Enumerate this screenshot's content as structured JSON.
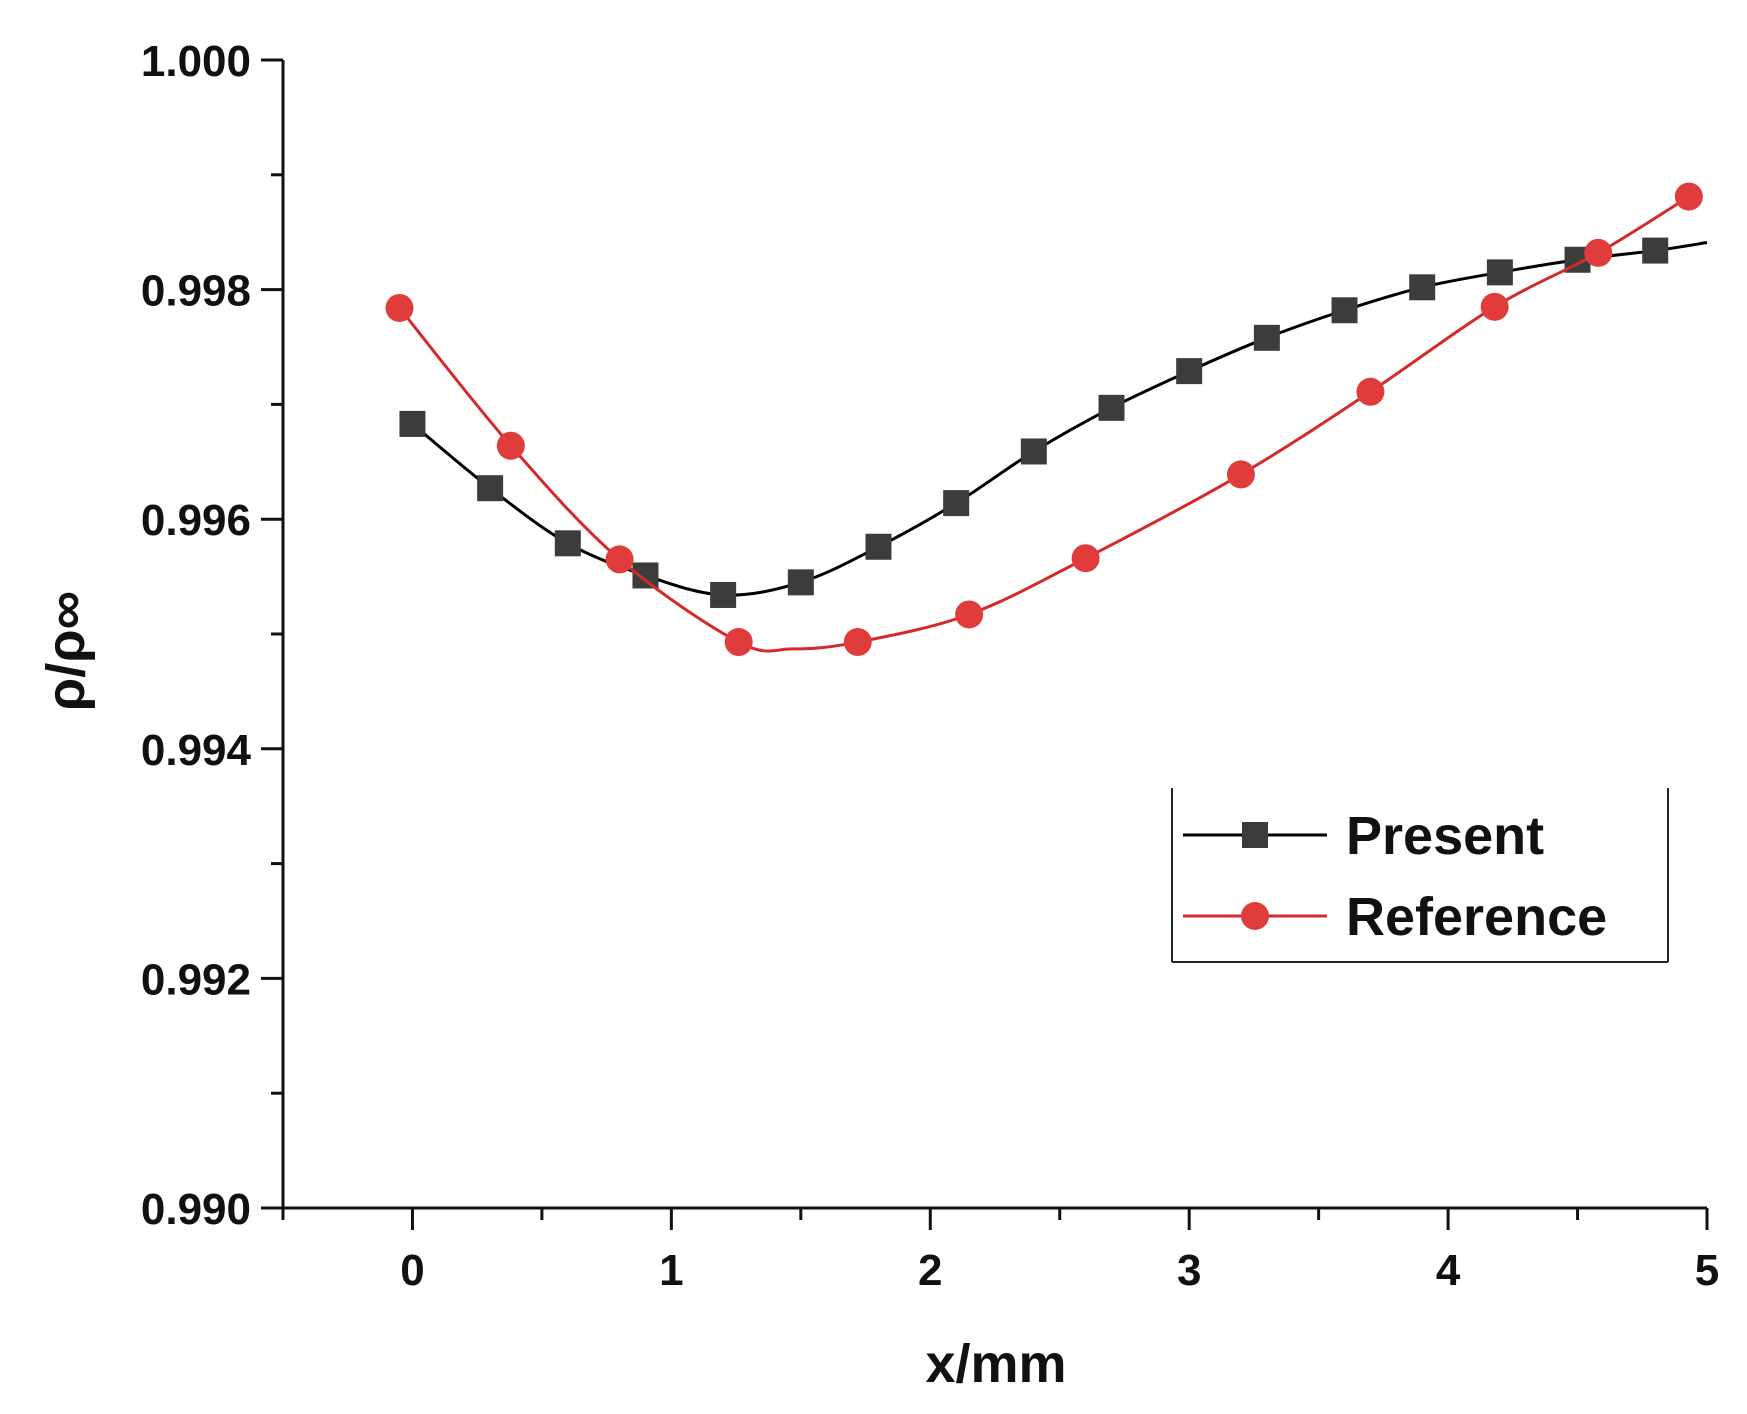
{
  "chart_data": {
    "type": "line",
    "title": "",
    "xlabel": "x/mm",
    "ylabel": "ρ/ρ∞",
    "xlim": [
      -0.5,
      5
    ],
    "ylim": [
      0.99,
      1.0
    ],
    "xticks": [
      0,
      1,
      2,
      3,
      4,
      5
    ],
    "xtick_labels": [
      "0",
      "1",
      "2",
      "3",
      "4",
      "5"
    ],
    "xminor_ticks": [
      -0.5,
      0.5,
      1.5,
      2.5,
      3.5,
      4.5
    ],
    "yticks": [
      0.99,
      0.992,
      0.994,
      0.996,
      0.998,
      1.0
    ],
    "ytick_labels": [
      "0.990",
      "0.992",
      "0.994",
      "0.996",
      "0.998",
      "1.000"
    ],
    "yminor_ticks": [
      0.991,
      0.993,
      0.995,
      0.997,
      0.999
    ],
    "grid": false,
    "legend_position": "right",
    "series": [
      {
        "name": "Present",
        "color": "#000000",
        "marker_color": "#3c3c3c",
        "marker": "square",
        "curve_x": [
          0.0,
          0.3,
          0.6,
          0.9,
          1.2,
          1.5,
          1.8,
          2.1,
          2.4,
          2.7,
          3.0,
          3.3,
          3.6,
          3.9,
          4.2,
          4.5,
          4.8,
          5.0
        ],
        "curve_y": [
          0.99683,
          0.99627,
          0.99579,
          0.99551,
          0.99534,
          0.99545,
          0.99576,
          0.99614,
          0.99659,
          0.99697,
          0.99729,
          0.99758,
          0.99782,
          0.99802,
          0.99815,
          0.99826,
          0.99834,
          0.99841
        ],
        "x": [
          0.0,
          0.3,
          0.6,
          0.9,
          1.2,
          1.5,
          1.8,
          2.1,
          2.4,
          2.7,
          3.0,
          3.3,
          3.6,
          3.9,
          4.2,
          4.5,
          4.8
        ],
        "y": [
          0.99683,
          0.99627,
          0.99579,
          0.99551,
          0.99534,
          0.99545,
          0.99576,
          0.99614,
          0.99659,
          0.99697,
          0.99729,
          0.99758,
          0.99782,
          0.99802,
          0.99815,
          0.99826,
          0.99834
        ]
      },
      {
        "name": "Reference",
        "color": "#d42a2a",
        "marker_color": "#e03c3c",
        "marker": "circle",
        "curve_x": [
          -0.05,
          0.38,
          0.8,
          1.26,
          1.47,
          1.72,
          2.15,
          2.6,
          3.2,
          3.7,
          4.18,
          4.58,
          4.93
        ],
        "curve_y": [
          0.99784,
          0.99664,
          0.99565,
          0.99493,
          0.99487,
          0.99493,
          0.99517,
          0.99566,
          0.99639,
          0.99711,
          0.99785,
          0.99832,
          0.99881
        ],
        "x": [
          -0.05,
          0.38,
          0.8,
          1.26,
          1.72,
          2.15,
          2.6,
          3.2,
          3.7,
          4.18,
          4.58,
          4.93
        ],
        "y": [
          0.99784,
          0.99664,
          0.99565,
          0.99493,
          0.99493,
          0.99517,
          0.99566,
          0.99639,
          0.99711,
          0.99785,
          0.99832,
          0.99881
        ]
      }
    ]
  }
}
